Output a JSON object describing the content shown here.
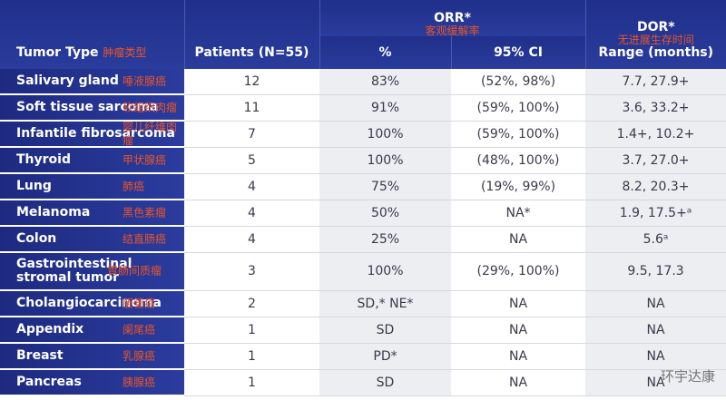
{
  "header": {
    "tumor_type": "Tumor Type",
    "tumor_type_cn": "肿瘤类型",
    "patients": "Patients (N=55)",
    "orr": "ORR*",
    "orr_cn": "客观缓解率",
    "pct": "%",
    "ci": "95% CI",
    "dor": "DOR*",
    "dor_cn": "无进展生存时间",
    "range": "Range (months)"
  },
  "table": {
    "rows": [
      [
        "Salivary gland",
        "唾液腺癌",
        12,
        "83%",
        "(52%, 98%)",
        "7.7, 27.9+"
      ],
      [
        "Soft tissue sarcoma",
        "软组织肉瘤",
        11,
        "91%",
        "(59%, 100%)",
        "3.6, 33.2+"
      ],
      [
        "Infantile fibrosarcoma",
        "婴儿纤维肉瘤",
        7,
        "100%",
        "(59%, 100%)",
        "1.4+, 10.2+"
      ],
      [
        "Thyroid",
        "甲状腺癌",
        5,
        "100%",
        "(48%, 100%)",
        "3.7, 27.0+"
      ],
      [
        "Lung",
        "肺癌",
        4,
        "75%",
        "(19%, 99%)",
        "8.2, 20.3+"
      ],
      [
        "Melanoma",
        "黑色素瘤",
        4,
        "50%",
        "NA*",
        "1.9, 17.5+ᵃ"
      ],
      [
        "Colon",
        "结直肠癌",
        4,
        "25%",
        "NA",
        "5.6ᵃ"
      ],
      [
        "Gastrointestinal stromal tumor",
        "胃肠间质瘤",
        3,
        "100%",
        "(29%, 100%)",
        "9.5, 17.3"
      ],
      [
        "Cholangiocarcinoma",
        "胆管癌",
        2,
        "SD,* NE*",
        "NA",
        "NA"
      ],
      [
        "Appendix",
        "阑尾癌",
        1,
        "SD",
        "NA",
        "NA"
      ],
      [
        "Breast",
        "乳腺癌",
        1,
        "PD*",
        "NA",
        "NA"
      ],
      [
        "Pancreas",
        "胰腺癌",
        1,
        "SD",
        "NA",
        "NA"
      ]
    ]
  },
  "watermark": "环宇达康"
}
